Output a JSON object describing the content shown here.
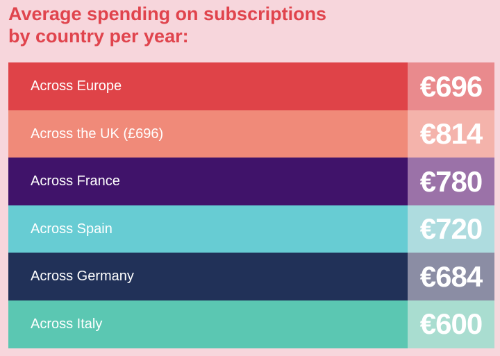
{
  "title_lines": [
    "Average spending on subscriptions",
    "by country per year:"
  ],
  "chart_data": {
    "type": "table",
    "rows": [
      {
        "label": "Across Europe",
        "value": "€696",
        "amount": 696,
        "color": "#df4348",
        "value_color": "#e98a8d"
      },
      {
        "label": "Across the UK (£696)",
        "value": "€814",
        "amount": 814,
        "color": "#f08a79",
        "value_color": "#f4b3ab"
      },
      {
        "label": "Across France",
        "value": "€780",
        "amount": 780,
        "color": "#40136a",
        "value_color": "#9b72a8"
      },
      {
        "label": "Across Spain",
        "value": "€720",
        "amount": 720,
        "color": "#67ccd3",
        "value_color": "#aedcdf"
      },
      {
        "label": "Across Germany",
        "value": "€684",
        "amount": 684,
        "color": "#213158",
        "value_color": "#8b8da4"
      },
      {
        "label": "Across Italy",
        "value": "€600",
        "amount": 600,
        "color": "#5bc7b2",
        "value_color": "#a9ddd0"
      }
    ]
  }
}
